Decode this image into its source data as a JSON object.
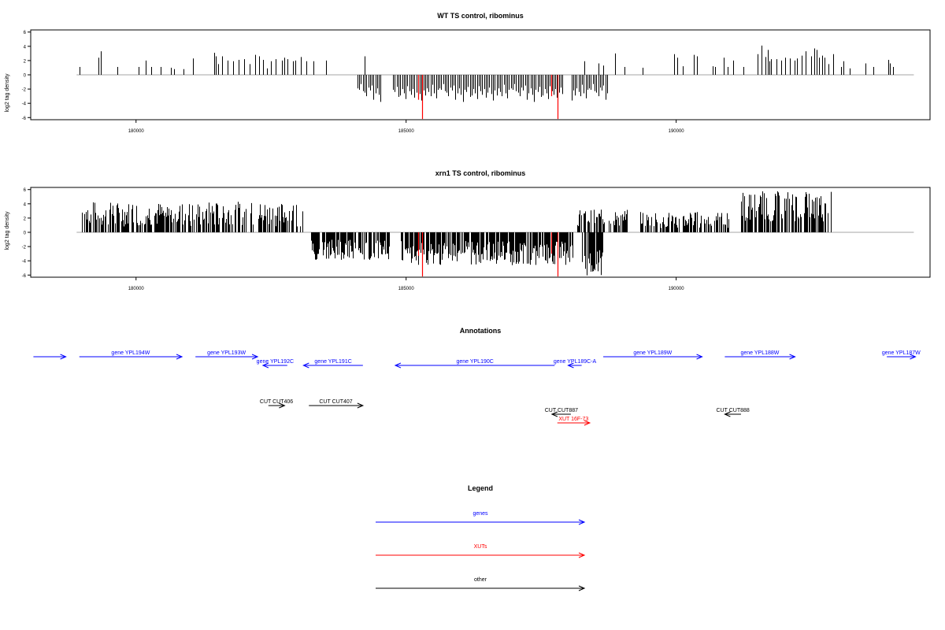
{
  "colors": {
    "gene": "#0000ff",
    "xut": "#ff0000",
    "other": "#000000",
    "highlight": "#ff0000",
    "bar": "#000000"
  },
  "panels": [
    {
      "title": "WT TS control, ribominus",
      "ylabel": "log2 tag density",
      "yticks": [
        -6,
        -4,
        -2,
        0,
        2,
        4,
        6
      ],
      "xticks": [
        180000,
        185000,
        190000
      ],
      "ylim": [
        -6.3,
        6.3
      ],
      "xlim": [
        178050,
        194700
      ]
    },
    {
      "title": "xrn1 TS control, ribominus",
      "ylabel": "log2 tag density",
      "yticks": [
        -6,
        -4,
        -2,
        0,
        2,
        4,
        6
      ],
      "xticks": [
        180000,
        185000,
        190000
      ],
      "ylim": [
        -6.3,
        6.3
      ],
      "xlim": [
        178050,
        194700
      ]
    }
  ],
  "chart_data": [
    {
      "type": "bar",
      "title": "WT TS control, ribominus",
      "ylabel": "log2 tag density",
      "xlabel": "",
      "ylim": [
        -6,
        6
      ],
      "xlim": [
        178050,
        194700
      ],
      "grid": false,
      "positive": {
        "x": [
          178950,
          179300,
          179350,
          179650,
          180050,
          180180,
          180280,
          180450,
          180650,
          180710,
          180880,
          181050,
          181450,
          181480,
          181520,
          181600,
          181700,
          181800,
          181900,
          182000,
          182100,
          182200,
          182280,
          182350,
          182420,
          182500,
          182580,
          182700,
          182750,
          182800,
          182900,
          182950,
          183050,
          183150,
          183280,
          183520,
          184230,
          188300,
          188560,
          188650,
          188870,
          189050,
          189380,
          189960,
          190020,
          190120,
          190330,
          190380,
          190670,
          190720,
          190880,
          190950,
          191060,
          191240,
          191510,
          191580,
          191650,
          191700,
          191720,
          191760,
          191860,
          191950,
          192020,
          192100,
          192190,
          192240,
          192320,
          192400,
          192500,
          192560,
          192600,
          192650,
          192700,
          192750,
          192820,
          192900,
          193050,
          193100,
          193220,
          193500,
          193650,
          193930,
          193950,
          194010
        ],
        "y": [
          1.1,
          2.4,
          3.3,
          1.1,
          1.1,
          2.0,
          1.1,
          1.1,
          1.0,
          0.8,
          0.8,
          2.3,
          3.1,
          2.6,
          1.5,
          2.6,
          2.0,
          1.9,
          2.1,
          2.2,
          1.5,
          2.8,
          2.6,
          2.1,
          0.9,
          1.9,
          2.2,
          2.0,
          2.4,
          2.2,
          1.9,
          2.0,
          2.5,
          1.9,
          1.9,
          2.0,
          2.6,
          1.9,
          1.6,
          1.3,
          3.0,
          1.1,
          1.0,
          2.9,
          2.4,
          1.2,
          2.8,
          2.6,
          1.2,
          1.1,
          2.4,
          1.1,
          2.0,
          1.1,
          2.9,
          4.1,
          2.5,
          3.5,
          1.9,
          2.2,
          2.2,
          2.0,
          2.4,
          2.3,
          2.0,
          2.3,
          2.7,
          3.3,
          2.6,
          3.7,
          3.5,
          2.4,
          2.7,
          2.4,
          1.5,
          2.9,
          1.1,
          1.9,
          0.9,
          1.6,
          1.1,
          2.1,
          1.6,
          1.1
        ]
      },
      "negative": {
        "start": 184100,
        "end": 188750,
        "pattern": [
          1.9,
          2.1,
          1.3,
          2.3,
          2.5,
          3.0,
          1.8,
          2.2,
          1.5,
          3.5,
          2.6,
          1.9,
          2.8,
          3.8,
          2.1,
          2.4,
          1.7,
          3.1,
          2.9,
          2.0,
          2.6,
          3.4,
          1.6,
          2.3,
          2.8,
          2.0,
          3.2,
          2.5,
          1.8,
          2.7,
          3.6,
          2.2,
          2.9,
          1.9,
          2.4,
          3.0,
          1.4,
          2.6,
          3.3,
          2.1
        ],
        "gaps": [
          [
            184550,
            184750
          ],
          [
            187920,
            188050
          ]
        ]
      },
      "highlight_bars": [
        {
          "x": 185300,
          "y": -6.2
        },
        {
          "x": 187800,
          "y": -6.2
        },
        {
          "x": 185230,
          "y": -3.5
        },
        {
          "x": 187690,
          "y": -3.0
        }
      ]
    },
    {
      "type": "bar",
      "title": "xrn1 TS control, ribominus",
      "ylabel": "log2 tag density",
      "xlabel": "",
      "ylim": [
        -6,
        6
      ],
      "xlim": [
        178050,
        194700
      ],
      "grid": false,
      "positive_ranges": [
        {
          "start": 179000,
          "end": 183100,
          "lo": 0.8,
          "hi": 4.3
        },
        {
          "start": 188150,
          "end": 189100,
          "lo": 0.8,
          "hi": 3.2
        },
        {
          "start": 189300,
          "end": 191000,
          "lo": 0.6,
          "hi": 2.9
        },
        {
          "start": 191200,
          "end": 192900,
          "lo": 1.5,
          "hi": 5.8
        }
      ],
      "negative_ranges": [
        {
          "start": 183200,
          "end": 184700,
          "lo": 1.0,
          "hi": 3.9
        },
        {
          "start": 184900,
          "end": 188100,
          "lo": 1.2,
          "hi": 4.6
        },
        {
          "start": 188250,
          "end": 188650,
          "lo": 2.5,
          "hi": 6.2
        }
      ],
      "highlight_bars": [
        {
          "x": 185300,
          "y": -6.2
        },
        {
          "x": 187800,
          "y": -6.2
        },
        {
          "x": 185230,
          "y": -3.3
        },
        {
          "x": 187680,
          "y": -3.0
        }
      ]
    }
  ],
  "annotations": {
    "title": "Annotations",
    "features": [
      {
        "label": "",
        "kind": "gene",
        "start": 178100,
        "end": 178700,
        "strand": "+",
        "row": 0
      },
      {
        "label": "gene YPL194W",
        "kind": "gene",
        "start": 178950,
        "end": 180850,
        "strand": "+",
        "row": 0
      },
      {
        "label": "gene YPL193W",
        "kind": "gene",
        "start": 181100,
        "end": 182250,
        "strand": "+",
        "row": 0
      },
      {
        "label": "gene YPL192C",
        "kind": "gene",
        "start": 182350,
        "end": 182800,
        "strand": "-",
        "row": 1
      },
      {
        "label": "gene YPL191C",
        "kind": "gene",
        "start": 183100,
        "end": 184200,
        "strand": "-",
        "row": 1
      },
      {
        "label": "gene YPL190C",
        "kind": "gene",
        "start": 184800,
        "end": 187750,
        "strand": "-",
        "row": 2
      },
      {
        "label": "gene YPL189C-A",
        "kind": "gene",
        "start": 188000,
        "end": 188250,
        "strand": "-",
        "row": 2
      },
      {
        "label": "gene YPL189W",
        "kind": "gene",
        "start": 188650,
        "end": 190480,
        "strand": "+",
        "row": 0
      },
      {
        "label": "gene YPL188W",
        "kind": "gene",
        "start": 190900,
        "end": 192200,
        "strand": "+",
        "row": 0
      },
      {
        "label": "gene YPL187W",
        "kind": "gene",
        "start": 193900,
        "end": 194430,
        "strand": "+",
        "row": 0
      },
      {
        "label": "CUT CUT406",
        "kind": "other",
        "start": 182450,
        "end": 182750,
        "strand": "+",
        "row": 3
      },
      {
        "label": "CUT CUT407",
        "kind": "other",
        "start": 183200,
        "end": 184200,
        "strand": "+",
        "row": 3
      },
      {
        "label": "CUT CUT887",
        "kind": "other",
        "start": 187700,
        "end": 188050,
        "strand": "-",
        "row": 4
      },
      {
        "label": "XUT 16F-73",
        "kind": "xut",
        "start": 187800,
        "end": 188400,
        "strand": "+",
        "row": 5
      },
      {
        "label": "CUT CUT888",
        "kind": "other",
        "start": 190900,
        "end": 191200,
        "strand": "-",
        "row": 4
      }
    ]
  },
  "legend": {
    "title": "Legend",
    "items": [
      {
        "label": "genes",
        "kind": "gene"
      },
      {
        "label": "XUTs",
        "kind": "xut"
      },
      {
        "label": "other",
        "kind": "other"
      }
    ]
  }
}
